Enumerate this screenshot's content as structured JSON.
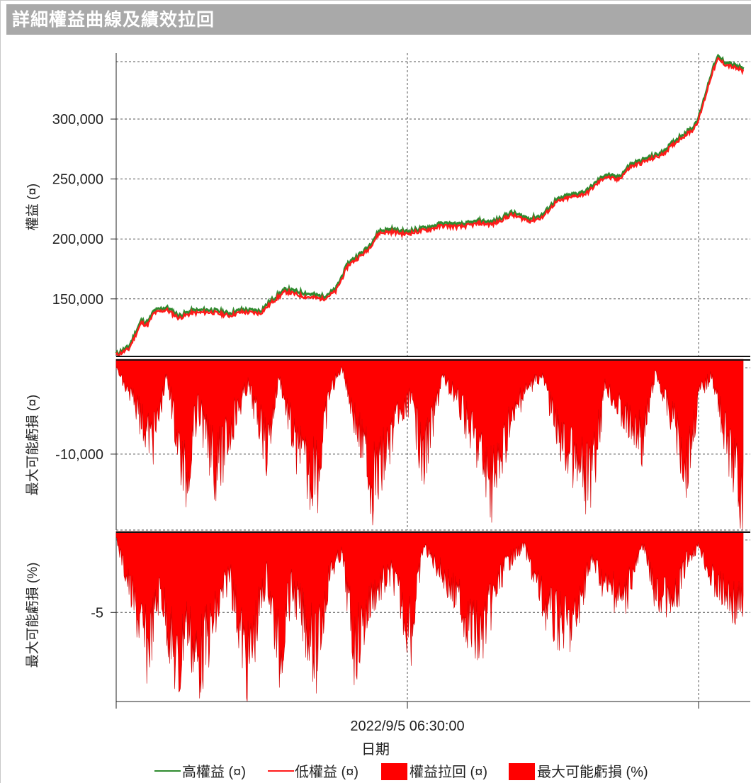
{
  "window": {
    "title": "詳細權益曲線及績效拉回"
  },
  "colors": {
    "high_equity": "#2e8b2e",
    "low_equity": "#ff1a1a",
    "drawdown_fill": "#ff0000",
    "title_bar": "#a9a9a9"
  },
  "chart_data": [
    {
      "type": "line",
      "panel": "equity",
      "ylabel": "權益 (¤)",
      "yticks": [
        150000,
        200000,
        250000,
        300000
      ],
      "ytick_labels": [
        "150,000",
        "200,000",
        "250,000",
        "300,000"
      ],
      "ylim": [
        102000,
        355000
      ],
      "grid": true,
      "x": [
        0,
        0.02,
        0.04,
        0.05,
        0.06,
        0.08,
        0.1,
        0.12,
        0.15,
        0.18,
        0.2,
        0.23,
        0.25,
        0.27,
        0.3,
        0.33,
        0.35,
        0.37,
        0.4,
        0.42,
        0.44,
        0.46,
        0.5,
        0.52,
        0.55,
        0.58,
        0.6,
        0.63,
        0.66,
        0.68,
        0.7,
        0.72,
        0.75,
        0.78,
        0.8,
        0.82,
        0.84,
        0.87,
        0.9,
        0.92,
        0.93,
        0.95,
        0.96,
        0.97,
        0.98,
        0.99,
        1.0
      ],
      "series": [
        {
          "name": "高權益 (¤)",
          "values": [
            104000,
            110000,
            132000,
            130000,
            140000,
            143000,
            136000,
            140000,
            141000,
            138000,
            141000,
            140000,
            150000,
            158000,
            155000,
            152000,
            158000,
            180000,
            192000,
            207000,
            208000,
            206000,
            210000,
            213000,
            212000,
            215000,
            214000,
            222000,
            217000,
            220000,
            232000,
            236000,
            240000,
            254000,
            251000,
            262000,
            266000,
            272000,
            286000,
            293000,
            303000,
            340000,
            352000,
            348000,
            346000,
            344000,
            342000
          ]
        },
        {
          "name": "低權益 (¤)",
          "values": [
            103000,
            108000,
            130000,
            128000,
            138000,
            141000,
            134000,
            138000,
            139000,
            136000,
            139000,
            138000,
            148000,
            156000,
            152000,
            150000,
            156000,
            178000,
            190000,
            205000,
            206000,
            204000,
            208000,
            211000,
            210000,
            213000,
            212000,
            220000,
            215000,
            218000,
            230000,
            234000,
            238000,
            252000,
            249000,
            260000,
            264000,
            270000,
            284000,
            291000,
            301000,
            338000,
            350000,
            346000,
            344000,
            342000,
            340000
          ]
        }
      ]
    },
    {
      "type": "area",
      "panel": "drawdown_value",
      "ylabel": "最大可能虧損 (¤)",
      "yticks": [
        -10000
      ],
      "ytick_labels": [
        "-10,000"
      ],
      "ylim": [
        -18000,
        0
      ],
      "grid": true,
      "series": [
        {
          "name": "權益拉回 (¤)",
          "x": [
            0,
            0.03,
            0.06,
            0.08,
            0.11,
            0.13,
            0.16,
            0.18,
            0.21,
            0.24,
            0.26,
            0.29,
            0.32,
            0.34,
            0.36,
            0.38,
            0.41,
            0.44,
            0.47,
            0.49,
            0.52,
            0.55,
            0.58,
            0.6,
            0.62,
            0.65,
            0.68,
            0.7,
            0.73,
            0.76,
            0.78,
            0.81,
            0.84,
            0.86,
            0.89,
            0.91,
            0.93,
            0.95,
            0.97,
            0.99,
            1.0
          ],
          "values": [
            -1000,
            -6000,
            -10000,
            -2000,
            -14800,
            -6000,
            -14000,
            -9000,
            -3000,
            -11000,
            -2000,
            -12000,
            -15000,
            -4000,
            -1000,
            -7000,
            -15600,
            -9000,
            -5000,
            -13000,
            -2000,
            -6000,
            -11000,
            -16500,
            -10000,
            -4000,
            -2000,
            -8000,
            -13000,
            -15200,
            -3000,
            -7000,
            -10000,
            -1500,
            -8000,
            -13000,
            -4000,
            -2000,
            -9000,
            -14000,
            -17500
          ]
        }
      ]
    },
    {
      "type": "area",
      "panel": "drawdown_percent",
      "ylabel": "最大可能虧損 (%)",
      "yticks": [
        -5
      ],
      "ytick_labels": [
        "-5"
      ],
      "ylim": [
        -10.5,
        0
      ],
      "grid": true,
      "series": [
        {
          "name": "最大可能虧損 (%)",
          "x": [
            0,
            0.03,
            0.05,
            0.07,
            0.1,
            0.11,
            0.13,
            0.16,
            0.18,
            0.21,
            0.24,
            0.26,
            0.28,
            0.32,
            0.34,
            0.36,
            0.38,
            0.41,
            0.44,
            0.47,
            0.49,
            0.52,
            0.55,
            0.58,
            0.6,
            0.62,
            0.65,
            0.68,
            0.7,
            0.73,
            0.76,
            0.78,
            0.81,
            0.84,
            0.86,
            0.89,
            0.91,
            0.93,
            0.95,
            0.97,
            0.99,
            1.0
          ],
          "values": [
            -0.5,
            -5.5,
            -8.5,
            -4.0,
            -10.5,
            -6.0,
            -9.5,
            -6.0,
            -3.0,
            -9.8,
            -3.0,
            -9.0,
            -4.0,
            -9.0,
            -3.0,
            -1.5,
            -8.5,
            -4.5,
            -3.0,
            -7.5,
            -1.0,
            -3.0,
            -5.5,
            -7.8,
            -5.0,
            -2.5,
            -1.0,
            -5.0,
            -6.5,
            -6.8,
            -2.0,
            -4.0,
            -5.0,
            -1.0,
            -4.5,
            -5.5,
            -2.0,
            -1.0,
            -3.5,
            -4.5,
            -5.2,
            -5.5
          ]
        }
      ]
    }
  ],
  "x_axis": {
    "tick_label": "2022/9/5 06:30:00",
    "label": "日期"
  },
  "legend": [
    {
      "label": "高權益 (¤)",
      "kind": "line",
      "color": "#2e8b2e"
    },
    {
      "label": "低權益 (¤)",
      "kind": "line",
      "color": "#ff1a1a"
    },
    {
      "label": "權益拉回 (¤)",
      "kind": "box",
      "color": "#ff0000"
    },
    {
      "label": "最大可能虧損 (%)",
      "kind": "box",
      "color": "#ff0000"
    }
  ]
}
